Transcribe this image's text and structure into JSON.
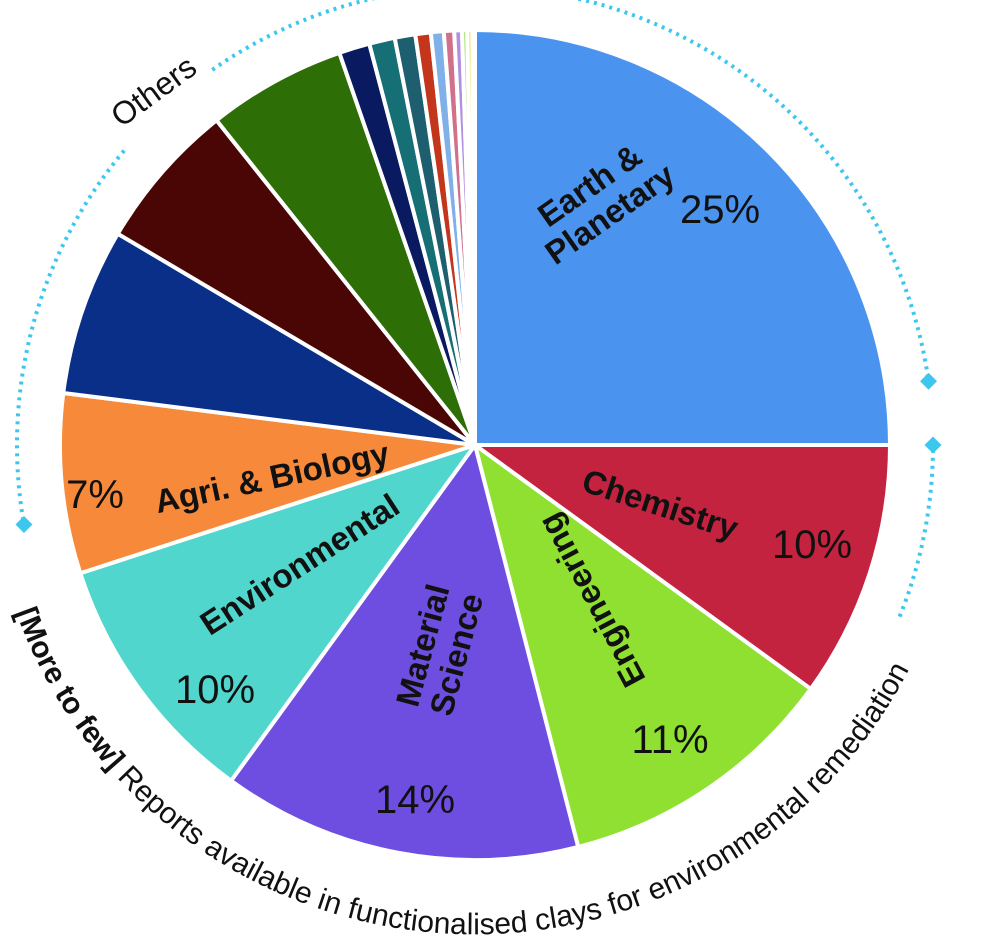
{
  "chart_data": {
    "type": "pie",
    "categories": [
      "Earth & Planetary",
      "Chemistry",
      "Engineering",
      "Material Science",
      "Environmental",
      "Agri. & Biology",
      null,
      null,
      null,
      null,
      null,
      null,
      null,
      null,
      null,
      null,
      null,
      null,
      null
    ],
    "values": [
      25,
      10,
      11,
      14,
      10,
      7,
      6.5,
      5.8,
      5.4,
      1.2,
      1.0,
      0.8,
      0.6,
      0.5,
      0.4,
      0.3,
      0.2,
      0.2,
      0.1
    ],
    "value_labels": [
      "25%",
      "10%",
      "11%",
      "14%",
      "10%",
      "7%",
      null,
      null,
      null,
      null,
      null,
      null,
      null,
      null,
      null,
      null,
      null,
      null,
      null
    ],
    "colors": [
      "#4a94f0",
      "#c4233f",
      "#8fe030",
      "#6e4ee0",
      "#50d6cc",
      "#f78a3a",
      "#0a2f88",
      "#4a0505",
      "#2e6e06",
      "#0a1a60",
      "#176f76",
      "#1d5f6e",
      "#c4361c",
      "#7fb0e8",
      "#d0708a",
      "#b090e0",
      "#a8e070",
      "#f0e060",
      "#f0c0a0"
    ],
    "annotations": {
      "others": "Others",
      "caption_bold": "[More to few]",
      "caption": "Reports available in functionalised clays for environmental remediation"
    }
  }
}
